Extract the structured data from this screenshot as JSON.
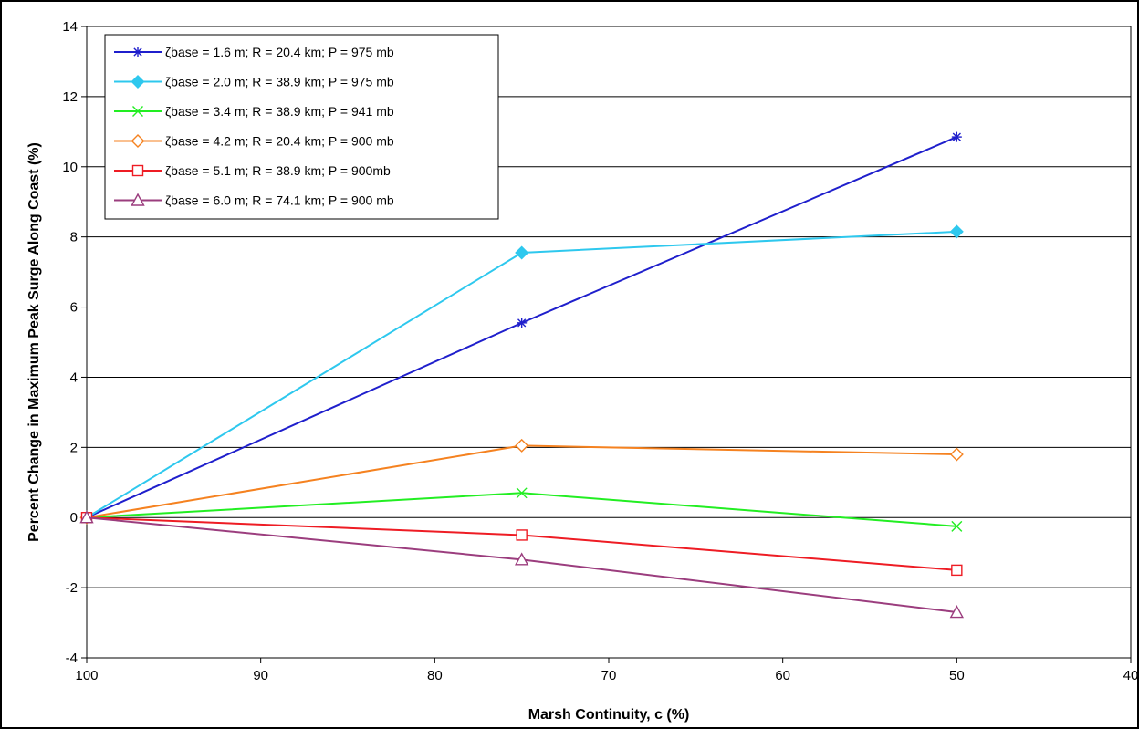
{
  "chart_data": {
    "type": "line",
    "xlabel": "Marsh Continuity,  c (%)",
    "ylabel": "Percent Change in Maximum Peak Surge Along Coast (%)",
    "xlim": [
      100,
      40
    ],
    "ylim": [
      -4,
      14
    ],
    "x_reversed": true,
    "xticks": [
      100,
      90,
      80,
      70,
      60,
      50,
      40
    ],
    "yticks": [
      -4,
      -2,
      0,
      2,
      4,
      6,
      8,
      10,
      12,
      14
    ],
    "grid": "horizontal",
    "legend_position": "top-left",
    "x": [
      100,
      75,
      50
    ],
    "series": [
      {
        "name": "ζbase = 1.6 m; R = 20.4 km; P = 975 mb",
        "color": "#1f1fcc",
        "marker": "asterisk",
        "values": [
          0,
          5.55,
          10.85
        ]
      },
      {
        "name": "ζbase = 2.0 m; R = 38.9 km; P = 975 mb",
        "color": "#2ec8ee",
        "marker": "diamond-filled",
        "values": [
          0,
          7.55,
          8.15
        ]
      },
      {
        "name": "ζbase = 3.4 m; R = 38.9 km; P = 941 mb",
        "color": "#22ee22",
        "marker": "x",
        "values": [
          0,
          0.7,
          -0.25
        ]
      },
      {
        "name": "ζbase = 4.2 m; R = 20.4 km; P = 900 mb",
        "color": "#f58220",
        "marker": "diamond-open",
        "values": [
          0,
          2.05,
          1.8
        ]
      },
      {
        "name": "ζbase = 5.1 m; R = 38.9 km; P = 900mb",
        "color": "#ee1c24",
        "marker": "square-open",
        "values": [
          0,
          -0.5,
          -1.5
        ]
      },
      {
        "name": "ζbase = 6.0 m; R = 74.1 km; P = 900 mb",
        "color": "#9b3d7e",
        "marker": "triangle-open",
        "values": [
          0,
          -1.2,
          -2.7
        ]
      }
    ]
  }
}
